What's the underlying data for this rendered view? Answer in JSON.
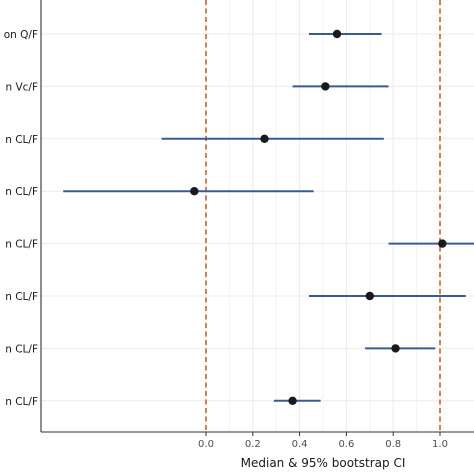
{
  "chart_data": {
    "type": "scatter",
    "style": "forest-plot",
    "xlabel": "Median & 95% bootstrap CI",
    "xlim": [
      -0.7,
      1.15
    ],
    "xticks": [
      0.0,
      0.2,
      0.4,
      0.6,
      0.8,
      1.0
    ],
    "xtick_labels": [
      "0.0",
      "0.2",
      "0.4",
      "0.6",
      "0.8",
      "1.0"
    ],
    "reference_lines": [
      0.0,
      1.0
    ],
    "colors": {
      "ci_line": "#3b5998",
      "point": "#1a1a1a",
      "reference": "#c8622a",
      "grid": "#ebebeb"
    },
    "grid": true,
    "rows": [
      {
        "label": "on Q/F",
        "median": 0.56,
        "lower": 0.44,
        "upper": 0.75
      },
      {
        "label": "n Vc/F",
        "median": 0.51,
        "lower": 0.37,
        "upper": 0.78
      },
      {
        "label": "n CL/F",
        "median": 0.25,
        "lower": -0.19,
        "upper": 0.76
      },
      {
        "label": "n CL/F",
        "median": -0.05,
        "lower": -0.61,
        "upper": 0.46
      },
      {
        "label": "n CL/F",
        "median": 1.01,
        "lower": 0.78,
        "upper": 1.15
      },
      {
        "label": "n CL/F",
        "median": 0.7,
        "lower": 0.44,
        "upper": 1.11
      },
      {
        "label": "n CL/F",
        "median": 0.81,
        "lower": 0.68,
        "upper": 0.98
      },
      {
        "label": "n CL/F",
        "median": 0.37,
        "lower": 0.29,
        "upper": 0.49
      }
    ]
  }
}
